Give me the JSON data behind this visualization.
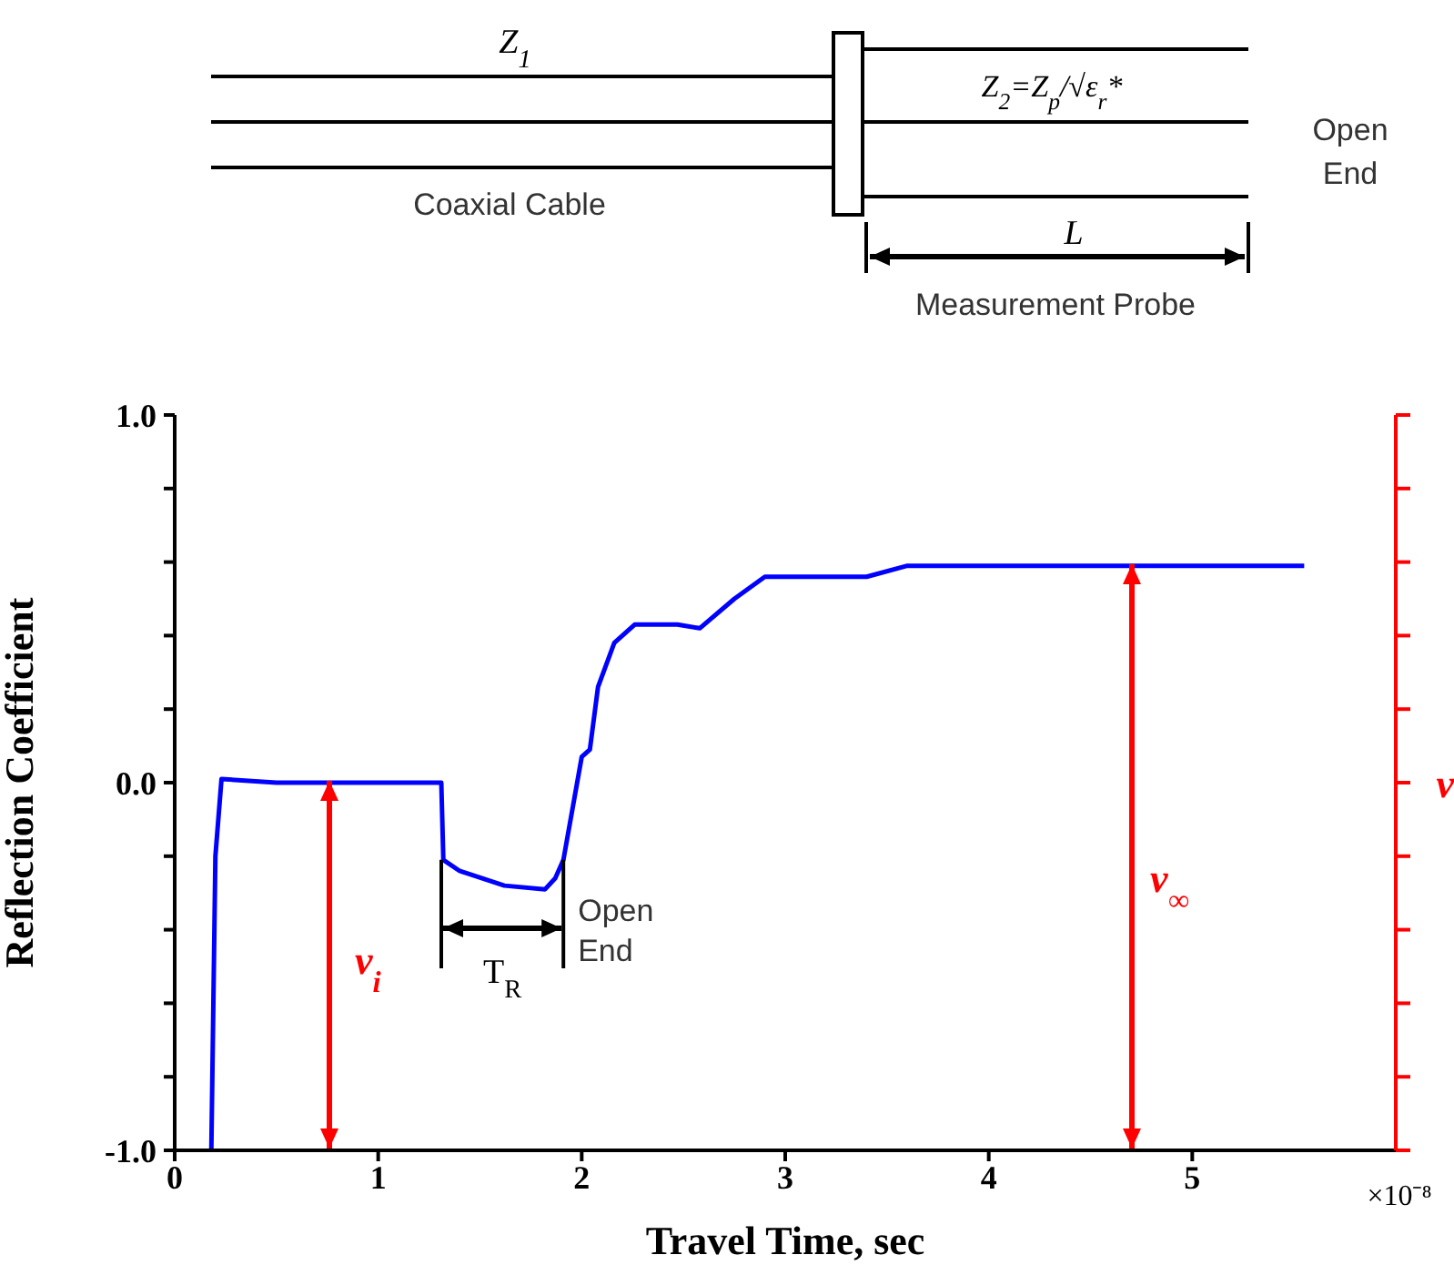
{
  "chart_data": {
    "type": "line",
    "xlabel": "Travel Time, sec",
    "ylabel": "Reflection Coefficient",
    "y2label": "v",
    "x": [
      0.18,
      0.19,
      0.2,
      0.23,
      0.5,
      1.0,
      1.31,
      1.32,
      1.4,
      1.62,
      1.82,
      1.87,
      1.91,
      2.0,
      2.04,
      2.08,
      2.16,
      2.26,
      2.47,
      2.58,
      2.75,
      2.9,
      3.4,
      3.6,
      5.55
    ],
    "series": [
      {
        "color": "#0000ff",
        "values": [
          -1.0,
          -0.6,
          -0.2,
          0.01,
          0.0,
          0.0,
          0.0,
          -0.21,
          -0.24,
          -0.28,
          -0.29,
          -0.26,
          -0.21,
          0.07,
          0.09,
          0.26,
          0.38,
          0.43,
          0.43,
          0.42,
          0.5,
          0.56,
          0.56,
          0.59,
          0.59
        ]
      }
    ],
    "xlim": [
      0,
      6
    ],
    "xticks": [
      0,
      1,
      2,
      3,
      4,
      5
    ],
    "ylim": [
      -1,
      1
    ],
    "yticks": [
      {
        "value": -1,
        "label": "-1.0"
      },
      {
        "value": -0.8,
        "label": null
      },
      {
        "value": -0.6,
        "label": null
      },
      {
        "value": -0.4,
        "label": null
      },
      {
        "value": -0.2,
        "label": null
      },
      {
        "value": 0,
        "label": "0.0"
      },
      {
        "value": 0.2,
        "label": null
      },
      {
        "value": 0.4,
        "label": null
      },
      {
        "value": 0.6,
        "label": null
      },
      {
        "value": 0.8,
        "label": null
      },
      {
        "value": 1,
        "label": "1.0"
      }
    ],
    "grid": false,
    "legend": false,
    "marker": "none",
    "line_style": "solid",
    "annotations": [
      "Z$_{1}$",
      "Z$_{2}$=Z$_{p}$/√ε$_{r}$*",
      "Open End",
      "Coaxial Cable",
      "L",
      "Measurement Probe",
      "×10⁻⁸",
      "v$_{i}$",
      "v$_{∞}$",
      {
        "text": "T$_{R}$",
        "x": 1.31,
        "y": -0.21
      },
      {
        "text": "Open End",
        "x": 1.91,
        "y": -0.21
      }
    ]
  }
}
